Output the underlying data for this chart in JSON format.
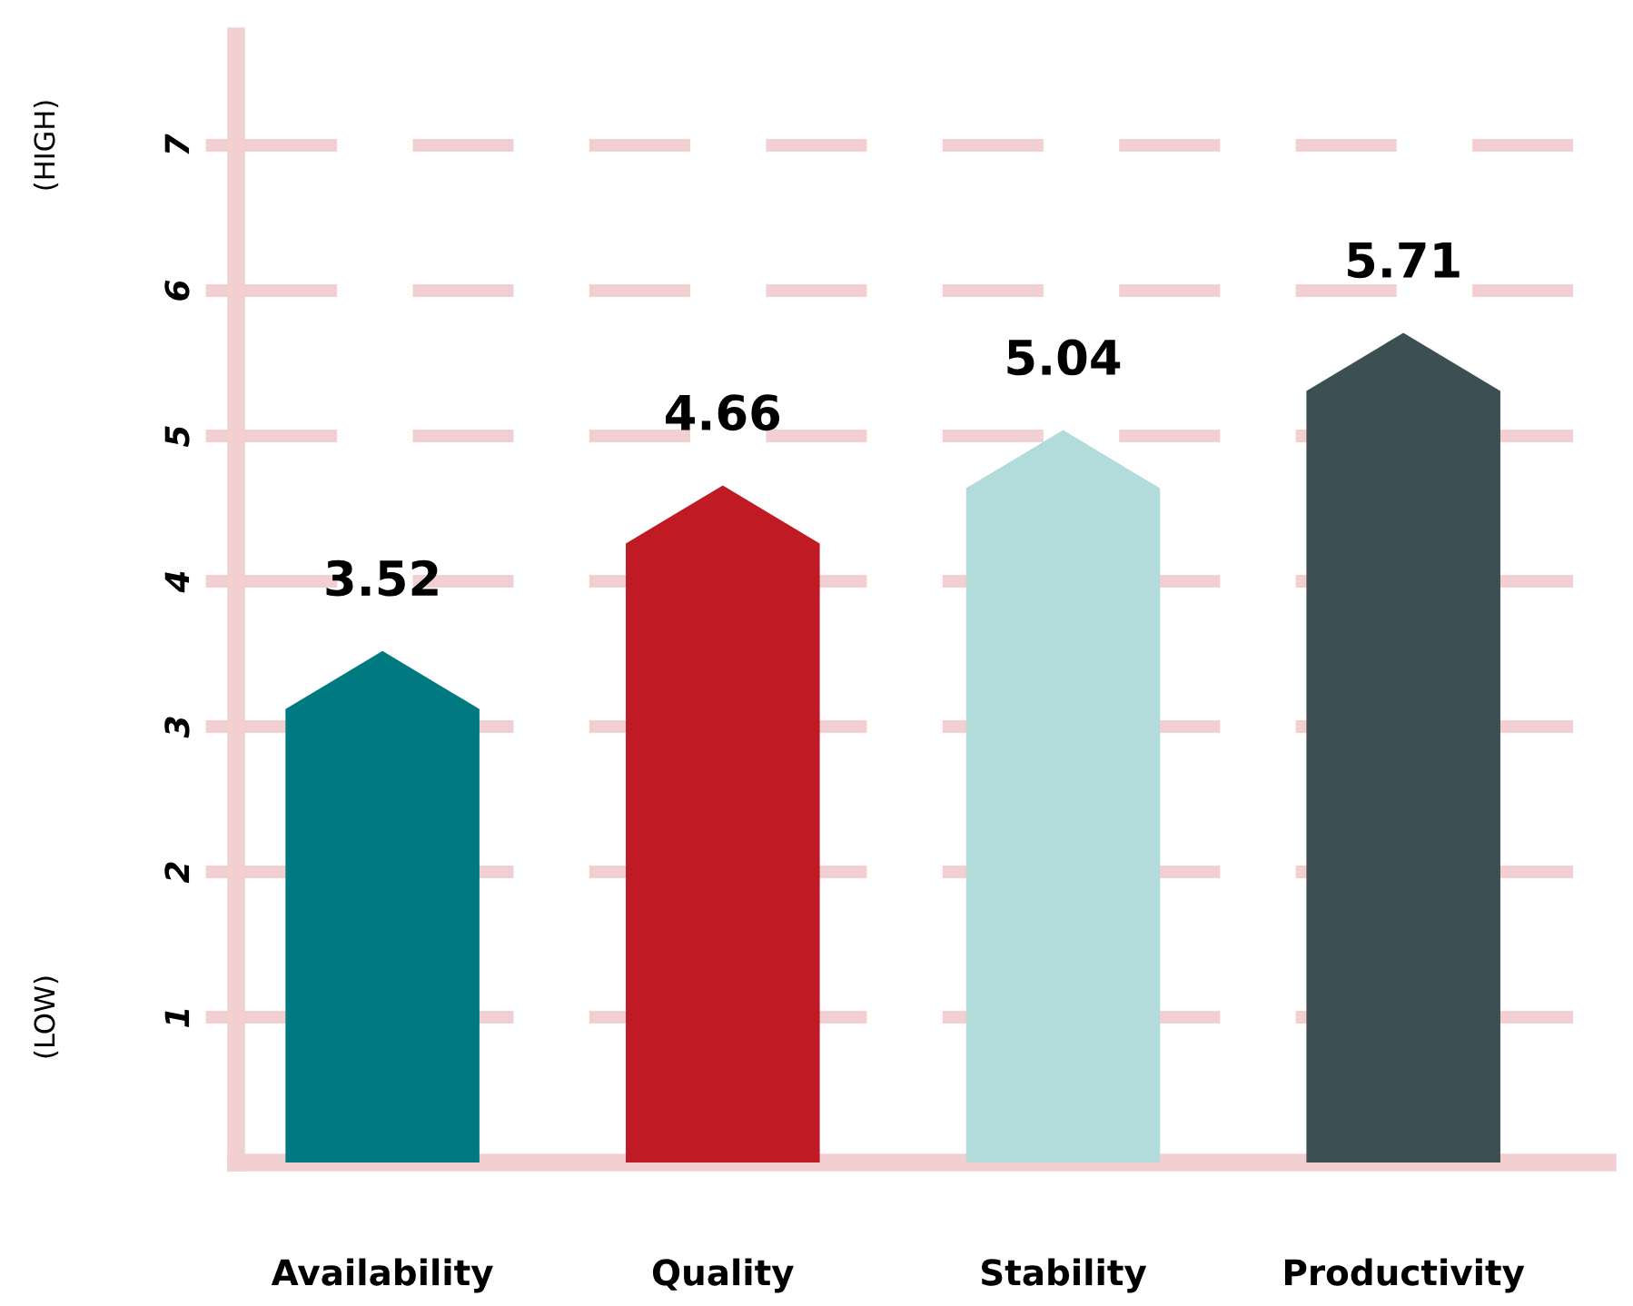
{
  "chart_data": {
    "type": "bar",
    "categories": [
      "Availability",
      "Quality",
      "Stability",
      "Productivity"
    ],
    "values": [
      3.52,
      4.66,
      5.04,
      5.71
    ],
    "colors": [
      "#007a80",
      "#c01a24",
      "#b2dcdc",
      "#3c5054"
    ],
    "ylim": [
      0,
      7.75
    ],
    "yticks": [
      1,
      2,
      3,
      4,
      5,
      6,
      7
    ],
    "grid": "y",
    "line_style": "dashed",
    "data_labels": true,
    "annotations": [
      "(LOW)",
      "(HIGH)"
    ]
  }
}
